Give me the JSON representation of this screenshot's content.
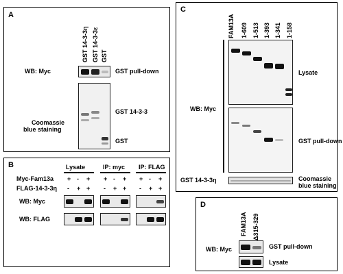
{
  "panelA": {
    "label": "A",
    "lanes": [
      "GST 14-3-3η",
      "GST 14-3-3ε",
      "GST"
    ],
    "wb_label": "WB: Myc",
    "pulldown_label": "GST pull-down",
    "coomassie_label_1": "Coomassie",
    "coomassie_label_2": "blue staining",
    "gst1433_label": "GST 14-3-3",
    "gst_label": "GST"
  },
  "panelB": {
    "label": "B",
    "headers": [
      "Lysate",
      "IP: myc",
      "IP: FLAG"
    ],
    "row1_label": "Myc-Fam13a",
    "row2_label": "FLAG-14-3-3η",
    "row1_signs": [
      "+",
      "-",
      "+",
      "+",
      "-",
      "+",
      "+",
      "-",
      "+"
    ],
    "row2_signs": [
      "-",
      "+",
      "+",
      "-",
      "+",
      "+",
      "-",
      "+",
      "+"
    ],
    "wb1_label": "WB: Myc",
    "wb2_label": "WB: FLAG"
  },
  "panelC": {
    "label": "C",
    "lanes": [
      "FAM13A",
      "1-609",
      "1-513",
      "1-393",
      "1-341",
      "1-158"
    ],
    "wb_label": "WB: Myc",
    "lysate_label": "Lysate",
    "pulldown_label": "GST pull-down",
    "gst_label": "GST 14-3-3η",
    "coomassie_label_1": "Coomassie",
    "coomassie_label_2": "blue staining"
  },
  "panelD": {
    "label": "D",
    "lanes": [
      "FAM13A",
      "Δ315-329"
    ],
    "wb_label": "WB: Myc",
    "pulldown_label": "GST pull-down",
    "lysate_label": "Lysate"
  },
  "colors": {
    "border": "#000000",
    "blot_bg": "#e9e9e9",
    "band": "#111111"
  }
}
